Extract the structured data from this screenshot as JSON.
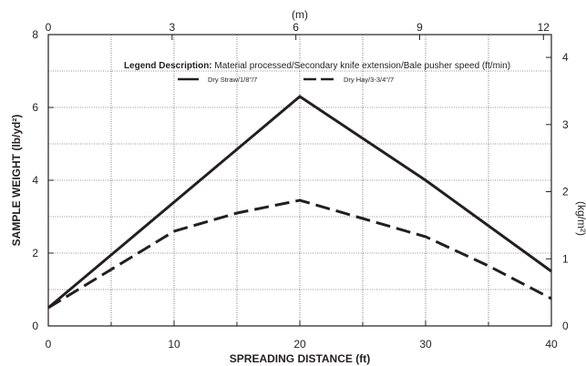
{
  "chart_data": {
    "type": "line",
    "xlabel": "SPREADING DISTANCE (ft)",
    "ylabel": "SAMPLE WEIGHT (lb/yd²)",
    "x_top_label": "(m)",
    "y_right_label": "(kg/m²)",
    "xlim": [
      0,
      40
    ],
    "ylim": [
      0,
      8
    ],
    "x_ticks": [
      "0",
      "10",
      "20",
      "30",
      "40"
    ],
    "y_ticks": [
      "0",
      "2",
      "4",
      "6",
      "8"
    ],
    "x_top_ticks": [
      "0",
      "3",
      "6",
      "9",
      "12"
    ],
    "y_right_ticks": [
      "0",
      "1",
      "2",
      "3",
      "4"
    ],
    "grid": true,
    "legend": {
      "title_bold": "Legend Description:",
      "title_rest": " Material processed/Secondary knife extension/Bale pusher speed (ft/min)",
      "placement": "top"
    },
    "series": [
      {
        "name": "Dry Straw/1/8\"/7",
        "style": "solid",
        "color": "#231f20",
        "x": [
          0,
          20,
          30,
          40
        ],
        "y": [
          0.5,
          6.3,
          4.0,
          1.5
        ]
      },
      {
        "name": "Dry Hay/3-3/4\"/7",
        "style": "dashed",
        "color": "#231f20",
        "x": [
          0,
          10,
          15,
          20,
          25,
          30,
          35,
          40
        ],
        "y": [
          0.5,
          2.6,
          3.1,
          3.45,
          2.95,
          2.45,
          1.65,
          0.75
        ]
      }
    ]
  }
}
